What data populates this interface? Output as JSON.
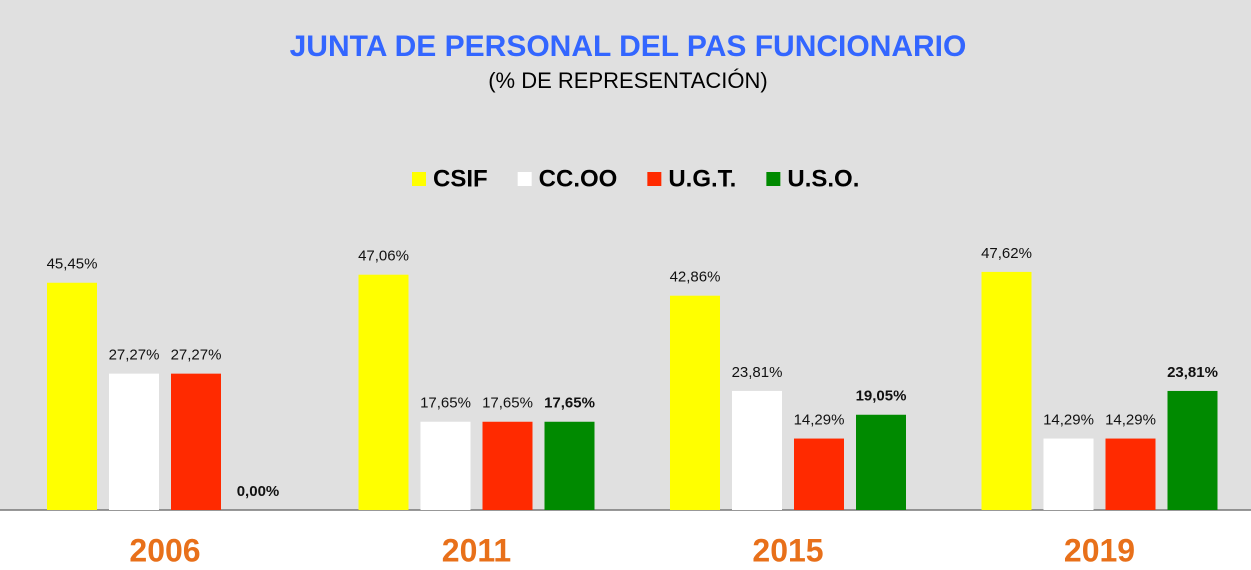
{
  "chart_data": {
    "type": "bar",
    "title": "JUNTA DE PERSONAL DEL PAS FUNCIONARIO",
    "subtitle": "(% DE REPRESENTACIÓN)",
    "categories": [
      "2006",
      "2011",
      "2015",
      "2019"
    ],
    "series": [
      {
        "name": "CSIF",
        "color": "#ffff00",
        "values": [
          45.45,
          47.06,
          42.86,
          47.62
        ],
        "value_labels": [
          "45,45%",
          "47,06%",
          "42,86%",
          "47,62%"
        ]
      },
      {
        "name": "CC.OO",
        "color": "#ffffff",
        "values": [
          27.27,
          17.65,
          23.81,
          14.29
        ],
        "value_labels": [
          "27,27%",
          "17,65%",
          "23,81%",
          "14,29%"
        ]
      },
      {
        "name": "U.G.T.",
        "color": "#ff2a00",
        "values": [
          27.27,
          17.65,
          14.29,
          14.29
        ],
        "value_labels": [
          "27,27%",
          "17,65%",
          "14,29%",
          "14,29%"
        ]
      },
      {
        "name": "U.S.O.",
        "color": "#008a00",
        "values": [
          0,
          17.65,
          19.05,
          23.81
        ],
        "value_labels": [
          "0,00%",
          "17,65%",
          "19,05%",
          "23,81%"
        ]
      }
    ],
    "legend": "top"
  }
}
